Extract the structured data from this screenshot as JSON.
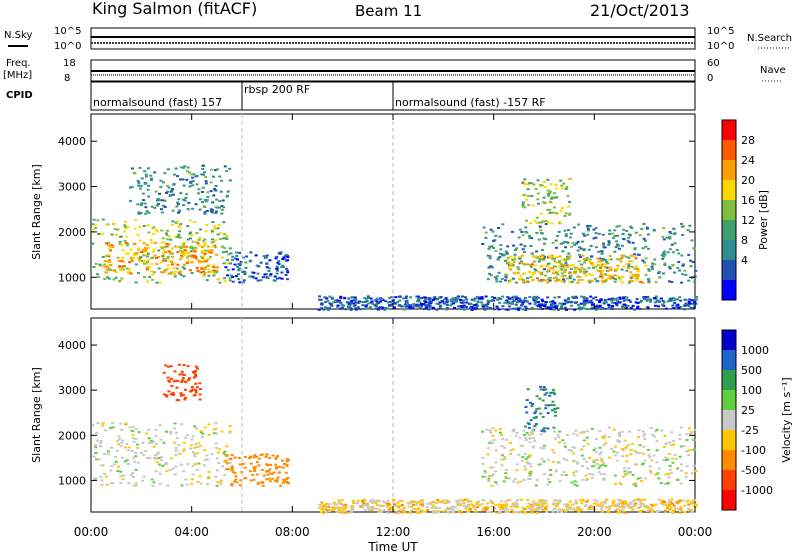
{
  "header": {
    "station": "King Salmon (fitACF)",
    "beam": "Beam 11",
    "date": "21/Oct/2013"
  },
  "top_panels": {
    "nsky_label": "N.Sky",
    "nsky_ticks": [
      "10^5",
      "10^0"
    ],
    "nsearch_label": "N.Search",
    "nsearch_ticks": [
      "10^5",
      "10^0"
    ],
    "freq_label": "Freq.",
    "freq_unit": "[MHz]",
    "freq_ticks": [
      "18",
      "8"
    ],
    "nave_label": "Nave",
    "nave_ticks": [
      "60",
      "0"
    ],
    "cpid_label": "CPID"
  },
  "cpid_segments": [
    {
      "label": "normalsound (fast) 157",
      "start_hour": 0
    },
    {
      "label": "rbsp 200 RF",
      "start_hour": 6
    },
    {
      "label": "normalsound (fast) -157 RF",
      "start_hour": 12
    }
  ],
  "axes": {
    "ylabel": "Slant Range [km]",
    "yticks": [
      1000,
      2000,
      3000,
      4000
    ],
    "ylim": [
      300,
      4600
    ],
    "xlabel": "Time UT",
    "xticks": [
      "00:00",
      "04:00",
      "08:00",
      "12:00",
      "16:00",
      "20:00",
      "00:00"
    ],
    "xlim_hours": [
      0,
      24
    ]
  },
  "power_scale": {
    "label": "Power [dB]",
    "ticks": [
      "28",
      "24",
      "20",
      "16",
      "12",
      "8",
      "4"
    ],
    "colors": [
      "#ff0000",
      "#ff5a00",
      "#ffa000",
      "#ffd700",
      "#7fbf3f",
      "#3fa070",
      "#2f8f8f",
      "#2050b0",
      "#0000ff"
    ]
  },
  "velocity_scale": {
    "label": "Velocity [m s⁻¹]",
    "ticks": [
      "1000",
      "500",
      "100",
      "25",
      "-25",
      "-100",
      "-500",
      "-1000"
    ],
    "colors": [
      "#0000c8",
      "#1e64c8",
      "#2f9f4f",
      "#5fd040",
      "#c8c8c8",
      "#ffc800",
      "#ff8c00",
      "#ff4000",
      "#ff0000"
    ]
  },
  "chart_data": [
    {
      "type": "heatmap",
      "title": "Power",
      "xlabel": "Time UT",
      "ylabel": "Slant Range [km]",
      "colorbar_label": "Power [dB]",
      "x_range_hours": [
        0,
        24
      ],
      "y_range_km": [
        300,
        4600
      ],
      "regions": [
        {
          "t": [
            0,
            5.5
          ],
          "range_km": [
            900,
            2300
          ],
          "power_db": 16
        },
        {
          "t": [
            0.5,
            5.0
          ],
          "range_km": [
            1100,
            1800
          ],
          "power_db": 22
        },
        {
          "t": [
            5.3,
            7.8
          ],
          "range_km": [
            900,
            1600
          ],
          "power_db": 6
        },
        {
          "t": [
            1.5,
            5.5
          ],
          "range_km": [
            2400,
            3500
          ],
          "power_db": 10
        },
        {
          "t": [
            15.5,
            24
          ],
          "range_km": [
            900,
            2200
          ],
          "power_db": 10
        },
        {
          "t": [
            16.5,
            22
          ],
          "range_km": [
            900,
            1500
          ],
          "power_db": 20
        },
        {
          "t": [
            17.0,
            19.0
          ],
          "range_km": [
            2200,
            3200
          ],
          "power_db": 16
        },
        {
          "t": [
            9.0,
            24
          ],
          "range_km": [
            300,
            600
          ],
          "power_db": 6
        }
      ]
    },
    {
      "type": "heatmap",
      "title": "Velocity",
      "xlabel": "Time UT",
      "ylabel": "Slant Range [km]",
      "colorbar_label": "Velocity [m s⁻¹]",
      "x_range_hours": [
        0,
        24
      ],
      "y_range_km": [
        300,
        4600
      ],
      "regions": [
        {
          "t": [
            0,
            5.5
          ],
          "range_km": [
            900,
            2300
          ],
          "velocity_ms": 0
        },
        {
          "t": [
            5.3,
            7.8
          ],
          "range_km": [
            900,
            1600
          ],
          "velocity_ms": -100
        },
        {
          "t": [
            2.8,
            4.3
          ],
          "range_km": [
            2800,
            3600
          ],
          "velocity_ms": -500
        },
        {
          "t": [
            17.2,
            18.5
          ],
          "range_km": [
            2100,
            3100
          ],
          "velocity_ms": 300
        },
        {
          "t": [
            15.5,
            24
          ],
          "range_km": [
            900,
            2200
          ],
          "velocity_ms": 0
        },
        {
          "t": [
            9.0,
            24
          ],
          "range_km": [
            300,
            600
          ],
          "velocity_ms": -30
        }
      ]
    }
  ]
}
